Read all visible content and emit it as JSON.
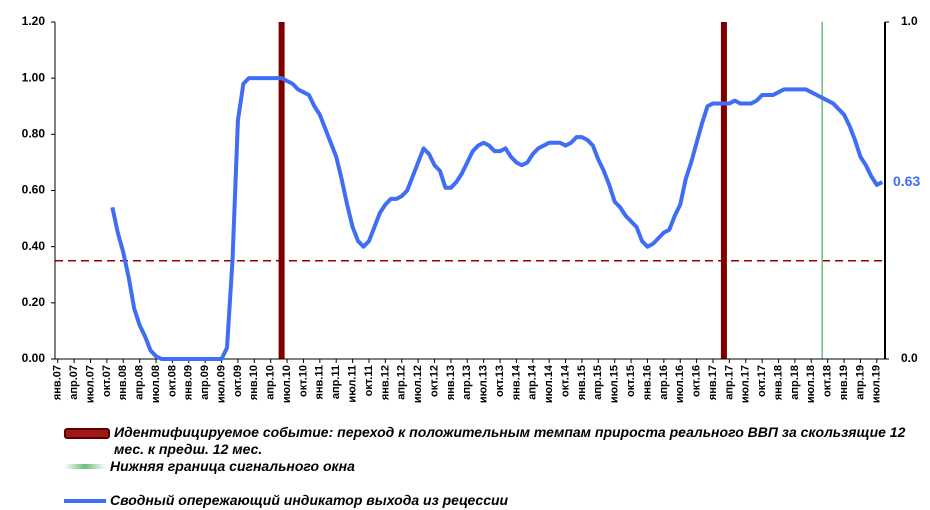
{
  "chart_data": {
    "type": "line",
    "categories": [
      "янв.07",
      null,
      null,
      "апр.07",
      null,
      null,
      "июл.07",
      null,
      null,
      "окт.07",
      null,
      null,
      "янв.08",
      null,
      null,
      "апр.08",
      null,
      null,
      "июл.08",
      null,
      null,
      "окт.08",
      null,
      null,
      "янв.09",
      null,
      null,
      "апр.09",
      null,
      null,
      "июл.09",
      null,
      null,
      "окт.09",
      null,
      null,
      "янв.10",
      null,
      null,
      "апр.10",
      null,
      null,
      "июл.10",
      null,
      null,
      "окт.10",
      null,
      null,
      "янв.11",
      null,
      null,
      "апр.11",
      null,
      null,
      "июл.11",
      null,
      null,
      "окт.11",
      null,
      null,
      "янв.12",
      null,
      null,
      "апр.12",
      null,
      null,
      "июл.12",
      null,
      null,
      "окт.12",
      null,
      null,
      "янв.13",
      null,
      null,
      "апр.13",
      null,
      null,
      "июл.13",
      null,
      null,
      "окт.13",
      null,
      null,
      "янв.14",
      null,
      null,
      "апр.14",
      null,
      null,
      "июл.14",
      null,
      null,
      "окт.14",
      null,
      null,
      "янв.15",
      null,
      null,
      "апр.15",
      null,
      null,
      "июл.15",
      null,
      null,
      "окт.15",
      null,
      null,
      "янв.16",
      null,
      null,
      "апр.16",
      null,
      null,
      "июл.16",
      null,
      null,
      "окт.16",
      null,
      null,
      "янв.17",
      null,
      null,
      "апр.17",
      null,
      null,
      "июл.17",
      null,
      null,
      "окт.17",
      null,
      null,
      "янв.18",
      null,
      null,
      "апр.18",
      null,
      null,
      "июл.18",
      null,
      null,
      "окт.18",
      null,
      null,
      "янв.19",
      null,
      null,
      "апр.19",
      null,
      null,
      "июл.19",
      null
    ],
    "series": [
      {
        "name": "Сводный опережающий индикатор выхода из рецессии",
        "color": "#3f6df5",
        "values": [
          null,
          null,
          null,
          null,
          null,
          null,
          null,
          null,
          null,
          null,
          0.54,
          0.45,
          0.38,
          0.29,
          0.18,
          0.12,
          0.08,
          0.03,
          0.01,
          0,
          0,
          0,
          0,
          0,
          0,
          0,
          0,
          0,
          0,
          0,
          0,
          0.04,
          0.35,
          0.85,
          0.98,
          1,
          1,
          1,
          1,
          1,
          1,
          1,
          0.99,
          0.98,
          0.96,
          0.95,
          0.94,
          0.9,
          0.87,
          0.82,
          0.77,
          0.72,
          0.64,
          0.55,
          0.47,
          0.42,
          0.4,
          0.42,
          0.47,
          0.52,
          0.55,
          0.57,
          0.57,
          0.58,
          0.6,
          0.65,
          0.7,
          0.75,
          0.73,
          0.69,
          0.67,
          0.61,
          0.61,
          0.63,
          0.66,
          0.7,
          0.74,
          0.76,
          0.77,
          0.76,
          0.74,
          0.74,
          0.75,
          0.72,
          0.7,
          0.69,
          0.7,
          0.73,
          0.75,
          0.76,
          0.77,
          0.77,
          0.77,
          0.76,
          0.77,
          0.79,
          0.79,
          0.78,
          0.76,
          0.71,
          0.67,
          0.62,
          0.56,
          0.54,
          0.51,
          0.49,
          0.47,
          0.42,
          0.4,
          0.41,
          0.43,
          0.45,
          0.46,
          0.51,
          0.55,
          0.64,
          0.7,
          0.77,
          0.84,
          0.9,
          0.91,
          0.91,
          0.91,
          0.91,
          0.92,
          0.91,
          0.91,
          0.91,
          0.92,
          0.94,
          0.94,
          0.94,
          0.95,
          0.96,
          0.96,
          0.96,
          0.96,
          0.96,
          0.95,
          0.94,
          0.93,
          0.92,
          0.91,
          0.89,
          0.87,
          0.83,
          0.78,
          0.72,
          0.69,
          0.65,
          0.62,
          0.63
        ]
      }
    ],
    "event_lines": {
      "name": "Идентифицируемое событие: переход к положительным темпам прироста реального ВВП за скользящие 12 мес. к предш. 12 мес.",
      "color": "#7f0000",
      "at": [
        41,
        122
      ]
    },
    "signal_window": {
      "name": "Нижняя граница сигнального окна",
      "color": "#6cbf7a",
      "at": [
        140
      ]
    },
    "threshold": {
      "value": 0.35,
      "color": "#990000"
    },
    "ylim": [
      0,
      1.2
    ],
    "yticks": [
      {
        "value": 0,
        "label": "0.00"
      },
      {
        "value": 0.2,
        "label": "0.20"
      },
      {
        "value": 0.4,
        "label": "0.40"
      },
      {
        "value": 0.6,
        "label": "0.60"
      },
      {
        "value": 0.8,
        "label": "0.80"
      },
      {
        "value": 1,
        "label": "1.00"
      },
      {
        "value": 1.2,
        "label": "1.20"
      }
    ],
    "y2lim": [
      0,
      1
    ],
    "y2ticks": [
      {
        "value": 0,
        "label": "0.0"
      },
      {
        "value": 1,
        "label": "1.0"
      }
    ]
  }
}
